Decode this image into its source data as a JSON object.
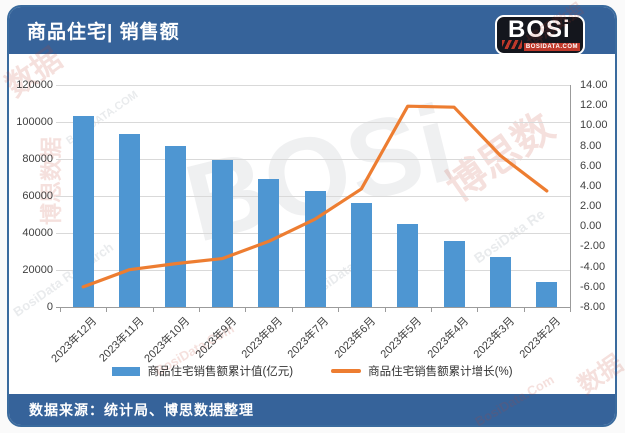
{
  "header": {
    "title": "商品住宅| 销售额"
  },
  "logo": {
    "name": "BOSi",
    "site": "BOSIDATA.COM"
  },
  "footer": {
    "source": "数据来源：统计局、博思数据整理"
  },
  "watermark": {
    "cn": "博思数据",
    "cn_short": "数据",
    "cn_mid": "博思数",
    "en": "BosiData Research",
    "en_mid": "BosiData Re",
    "site": "BOSIDATA.COM",
    "site_red": "BosiData.Com",
    "logo": "BOSi"
  },
  "colors": {
    "header_bg": "#36639A",
    "card_border": "#3A6B9E",
    "bar": "#4E96D2",
    "line": "#ED7D31",
    "grid": "#D9D9D9",
    "axis": "#9B9B9B",
    "tick_text": "#3F3F3F"
  },
  "chart_data": {
    "type": "bar+line",
    "categories": [
      "2023年12月",
      "2023年11月",
      "2023年10月",
      "2023年9月",
      "2023年8月",
      "2023年7月",
      "2023年6月",
      "2023年5月",
      "2023年4月",
      "2023年3月",
      "2023年2月"
    ],
    "series": [
      {
        "name": "商品住宅销售额累计值(亿元)",
        "type": "bar",
        "axis": "left",
        "color": "#4E96D2",
        "values": [
          103300,
          93500,
          86800,
          79400,
          69300,
          62700,
          56200,
          45000,
          35900,
          27200,
          13500
        ]
      },
      {
        "name": "商品住宅销售额累计增长(%)",
        "type": "line",
        "axis": "right",
        "color": "#ED7D31",
        "values": [
          -6.0,
          -4.3,
          -3.7,
          -3.2,
          -1.5,
          0.7,
          3.7,
          11.9,
          11.8,
          7.0,
          3.5
        ]
      }
    ],
    "left_axis": {
      "min": 0,
      "max": 120000,
      "step": 20000
    },
    "right_axis": {
      "min": -8,
      "max": 14,
      "step": 2,
      "decimals": 2
    },
    "grid": true,
    "legend_position": "bottom"
  }
}
